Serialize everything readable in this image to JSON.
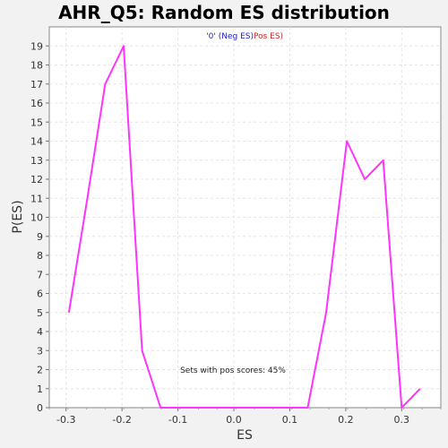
{
  "chart_data": {
    "type": "line",
    "title": "AHR_Q5: Random ES distribution",
    "xlabel": "ES",
    "ylabel": "P(ES)",
    "xlim": [
      -0.33,
      0.37
    ],
    "ylim": [
      0,
      20
    ],
    "x_ticks": [
      -0.3,
      -0.2,
      -0.1,
      0.0,
      0.1,
      0.2,
      0.3
    ],
    "x_tick_labels": [
      "-0.3",
      "-0.2",
      "-0.1",
      "0.0",
      "0.1",
      "0.2",
      "0.3"
    ],
    "y_ticks": [
      0,
      1,
      2,
      3,
      4,
      5,
      6,
      7,
      8,
      9,
      10,
      11,
      12,
      13,
      14,
      15,
      16,
      17,
      18,
      19
    ],
    "y_tick_labels": [
      "0",
      "1",
      "2",
      "3",
      "4",
      "5",
      "6",
      "7",
      "8",
      "9",
      "10",
      "11",
      "12",
      "13",
      "14",
      "15",
      "16",
      "17",
      "18",
      "19"
    ],
    "grid": true,
    "legend": {
      "placement": "top-center",
      "neg_label": "'0' (Neg ES)",
      "pos_label": "Pos ES)",
      "neg_color": "#2222cc",
      "pos_color": "#dd2222"
    },
    "annotation": "Sets with pos scores: 45%",
    "series": [
      {
        "color": "#ff33ff",
        "x": [
          -0.295,
          -0.262,
          -0.23,
          -0.197,
          -0.164,
          -0.131,
          -0.098,
          -0.065,
          -0.033,
          0.0,
          0.033,
          0.066,
          0.099,
          0.132,
          0.165,
          0.202,
          0.234,
          0.267,
          0.3,
          0.333
        ],
        "y": [
          5,
          11,
          17,
          19,
          3,
          0,
          0,
          0,
          0,
          0,
          0,
          0,
          0,
          0,
          5,
          14,
          12,
          13,
          0,
          1
        ]
      }
    ]
  }
}
